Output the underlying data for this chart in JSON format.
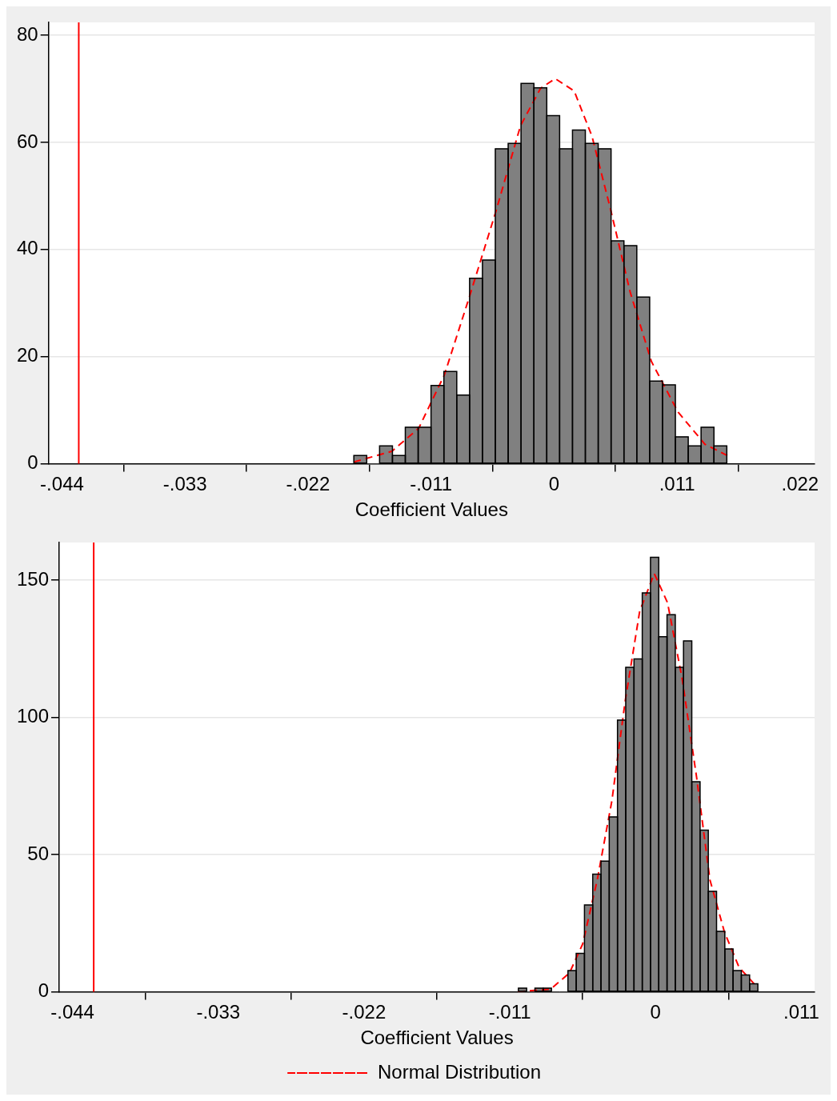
{
  "chart_data": [
    {
      "type": "histogram",
      "xlabel": "Coefficient Values",
      "xlim": [
        -0.0452,
        0.0233
      ],
      "ylim": [
        0,
        82.4
      ],
      "xticks": [
        {
          "value": -0.044,
          "label": "-.044"
        },
        {
          "value": -0.033,
          "label": "-.033"
        },
        {
          "value": -0.022,
          "label": "-.022"
        },
        {
          "value": -0.011,
          "label": "-.011"
        },
        0,
        {
          "value": 0.011,
          "label": ".011"
        },
        {
          "value": 0.022,
          "label": ".022"
        }
      ],
      "yticks": [
        0,
        20,
        40,
        60,
        80
      ],
      "grid": "y",
      "ref_lines": [
        {
          "axis": "x",
          "value": -0.0425,
          "color": "#ff0000"
        }
      ],
      "series": [
        {
          "type": "histogram",
          "color": "#808080",
          "bins": [
            -0.0179,
            -0.01675,
            -0.0156,
            -0.01445,
            -0.0133,
            -0.01215,
            -0.011,
            -0.00985,
            -0.0087,
            -0.00755,
            -0.0064,
            -0.00525,
            -0.0041,
            -0.00295,
            -0.0018,
            -0.00065,
            0.0005,
            0.00165,
            0.0028,
            0.00395,
            0.0051,
            0.00625,
            0.0074,
            0.00855,
            0.0097,
            0.01085,
            0.012,
            0.01315,
            0.0143,
            0.01545
          ],
          "values": [
            1.5,
            0,
            3.3,
            1.5,
            6.8,
            6.8,
            14.6,
            17.2,
            12.8,
            34.6,
            38,
            58.8,
            59.8,
            71,
            70.2,
            65,
            58.8,
            62.3,
            59.8,
            58.8,
            41.6,
            40.7,
            31.1,
            15.4,
            14.7,
            5,
            3.3,
            6.8,
            3.3
          ]
        },
        {
          "type": "line",
          "color": "#ff0000",
          "line_style": "dashed",
          "x": [
            -0.0179,
            -0.0145,
            -0.0121,
            -0.0098,
            -0.0075,
            -0.0052,
            -0.003,
            -0.0012,
            0.0001,
            0.0018,
            0.0034,
            0.0051,
            0.0068,
            0.0087,
            0.0111,
            0.0135,
            0.0155
          ],
          "values": [
            0.3,
            2.3,
            6.6,
            16.6,
            31.6,
            47.1,
            63.1,
            70.1,
            71.9,
            69.6,
            61.1,
            47.1,
            32.1,
            19.1,
            9.6,
            3.6,
            1.5
          ]
        }
      ]
    },
    {
      "type": "histogram",
      "xlabel": "Coefficient Values",
      "xlim": [
        -0.045,
        0.012
      ],
      "ylim": [
        0,
        163.7
      ],
      "xticks": [
        {
          "value": -0.044,
          "label": "-.044"
        },
        {
          "value": -0.033,
          "label": "-.033"
        },
        {
          "value": -0.022,
          "label": "-.022"
        },
        {
          "value": -0.011,
          "label": "-.011"
        },
        0,
        {
          "value": 0.011,
          "label": ".011"
        }
      ],
      "yticks": [
        0,
        50,
        100,
        150
      ],
      "grid": "y",
      "legend": "bottom",
      "ref_lines": [
        {
          "axis": "x",
          "value": -0.0424,
          "color": "#ff0000"
        }
      ],
      "series": [
        {
          "type": "histogram",
          "color": "#808080",
          "bins": [
            -0.01035,
            -0.009727,
            -0.009104,
            -0.008481,
            -0.007858,
            -0.007235,
            -0.006612,
            -0.005989,
            -0.005366,
            -0.004743,
            -0.00412,
            -0.003497,
            -0.002874,
            -0.002251,
            -0.001628,
            -0.001005,
            -0.000382,
            0.000241,
            0.000864,
            0.001487,
            0.00211,
            0.002733,
            0.003356,
            0.003979,
            0.004602,
            0.005225,
            0.005848,
            0.006471,
            0.007094,
            0.007717
          ],
          "values": [
            1.3,
            0,
            1.3,
            1.3,
            0,
            0,
            7.7,
            14,
            31.6,
            42.8,
            47.6,
            63.7,
            99,
            118.2,
            121.3,
            145.3,
            158.3,
            129.4,
            137.4,
            118.2,
            127.8,
            76.5,
            58.9,
            36.6,
            22,
            15.6,
            7.7,
            6.1,
            2.9
          ]
        },
        {
          "type": "line",
          "name": "Normal Distribution",
          "color": "#ff0000",
          "line_style": "dashed",
          "x": [
            -0.0104,
            -0.0079,
            -0.0065,
            -0.0055,
            -0.0044,
            -0.0033,
            -0.0023,
            -0.0012,
            -0.0001,
            0.0009,
            0.002,
            0.0031,
            0.0041,
            0.0052,
            0.0063,
            0.0076
          ],
          "values": [
            0,
            1,
            6.8,
            17.4,
            40.8,
            69.5,
            105.7,
            138.6,
            152.4,
            141.8,
            114.2,
            78,
            40.8,
            21.7,
            8.9,
            2
          ]
        }
      ]
    }
  ]
}
